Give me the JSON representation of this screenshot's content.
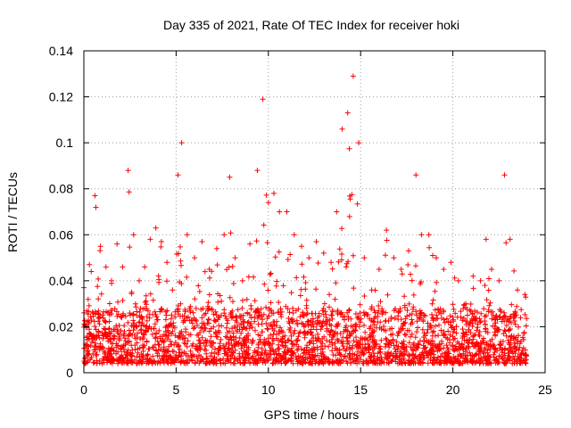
{
  "chart_data": {
    "type": "scatter",
    "title": "Day 335 of 2021, Rate Of TEC Index for receiver hoki",
    "xlabel": "GPS time / hours",
    "ylabel": "ROTI / TECUs",
    "xlim": [
      0,
      25
    ],
    "ylim": [
      0,
      0.14
    ],
    "xticks": [
      "0",
      "5",
      "10",
      "15",
      "20",
      "25"
    ],
    "yticks": [
      "0",
      "0.02",
      "0.04",
      "0.06",
      "0.08",
      "0.1",
      "0.12",
      "0.14"
    ],
    "grid": true,
    "marker": "+",
    "series": [
      {
        "color": "#ff0000",
        "x_range": [
          0,
          24
        ],
        "baseline_band": [
          0.004,
          0.028
        ],
        "envelope": [
          [
            0.0,
            0.037
          ],
          [
            0.3,
            0.047
          ],
          [
            0.6,
            0.077
          ],
          [
            0.9,
            0.055
          ],
          [
            1.2,
            0.046
          ],
          [
            1.5,
            0.04
          ],
          [
            1.8,
            0.056
          ],
          [
            2.1,
            0.046
          ],
          [
            2.4,
            0.088
          ],
          [
            2.7,
            0.06
          ],
          [
            3.0,
            0.04
          ],
          [
            3.3,
            0.046
          ],
          [
            3.6,
            0.058
          ],
          [
            3.9,
            0.063
          ],
          [
            4.2,
            0.057
          ],
          [
            4.5,
            0.048
          ],
          [
            4.8,
            0.036
          ],
          [
            5.1,
            0.086
          ],
          [
            5.3,
            0.1
          ],
          [
            5.6,
            0.06
          ],
          [
            6.0,
            0.05
          ],
          [
            6.4,
            0.057
          ],
          [
            6.8,
            0.045
          ],
          [
            7.2,
            0.054
          ],
          [
            7.6,
            0.06
          ],
          [
            7.9,
            0.085
          ],
          [
            8.2,
            0.05
          ],
          [
            8.6,
            0.04
          ],
          [
            9.0,
            0.056
          ],
          [
            9.4,
            0.088
          ],
          [
            9.7,
            0.119
          ],
          [
            10.0,
            0.074
          ],
          [
            10.3,
            0.078
          ],
          [
            10.6,
            0.07
          ],
          [
            11.0,
            0.07
          ],
          [
            11.4,
            0.06
          ],
          [
            11.8,
            0.055
          ],
          [
            12.2,
            0.05
          ],
          [
            12.6,
            0.057
          ],
          [
            13.0,
            0.052
          ],
          [
            13.4,
            0.048
          ],
          [
            13.7,
            0.07
          ],
          [
            14.0,
            0.106
          ],
          [
            14.3,
            0.113
          ],
          [
            14.6,
            0.129
          ],
          [
            14.9,
            0.1
          ],
          [
            15.2,
            0.05
          ],
          [
            15.6,
            0.036
          ],
          [
            16.0,
            0.045
          ],
          [
            16.4,
            0.062
          ],
          [
            16.8,
            0.05
          ],
          [
            17.2,
            0.045
          ],
          [
            17.6,
            0.053
          ],
          [
            18.0,
            0.086
          ],
          [
            18.3,
            0.06
          ],
          [
            18.7,
            0.06
          ],
          [
            19.1,
            0.05
          ],
          [
            19.5,
            0.045
          ],
          [
            19.9,
            0.048
          ],
          [
            20.3,
            0.04
          ],
          [
            20.7,
            0.03
          ],
          [
            21.1,
            0.042
          ],
          [
            21.5,
            0.04
          ],
          [
            21.8,
            0.058
          ],
          [
            22.1,
            0.045
          ],
          [
            22.5,
            0.04
          ],
          [
            22.8,
            0.086
          ],
          [
            23.1,
            0.058
          ],
          [
            23.5,
            0.036
          ],
          [
            23.9,
            0.034
          ]
        ]
      }
    ]
  }
}
